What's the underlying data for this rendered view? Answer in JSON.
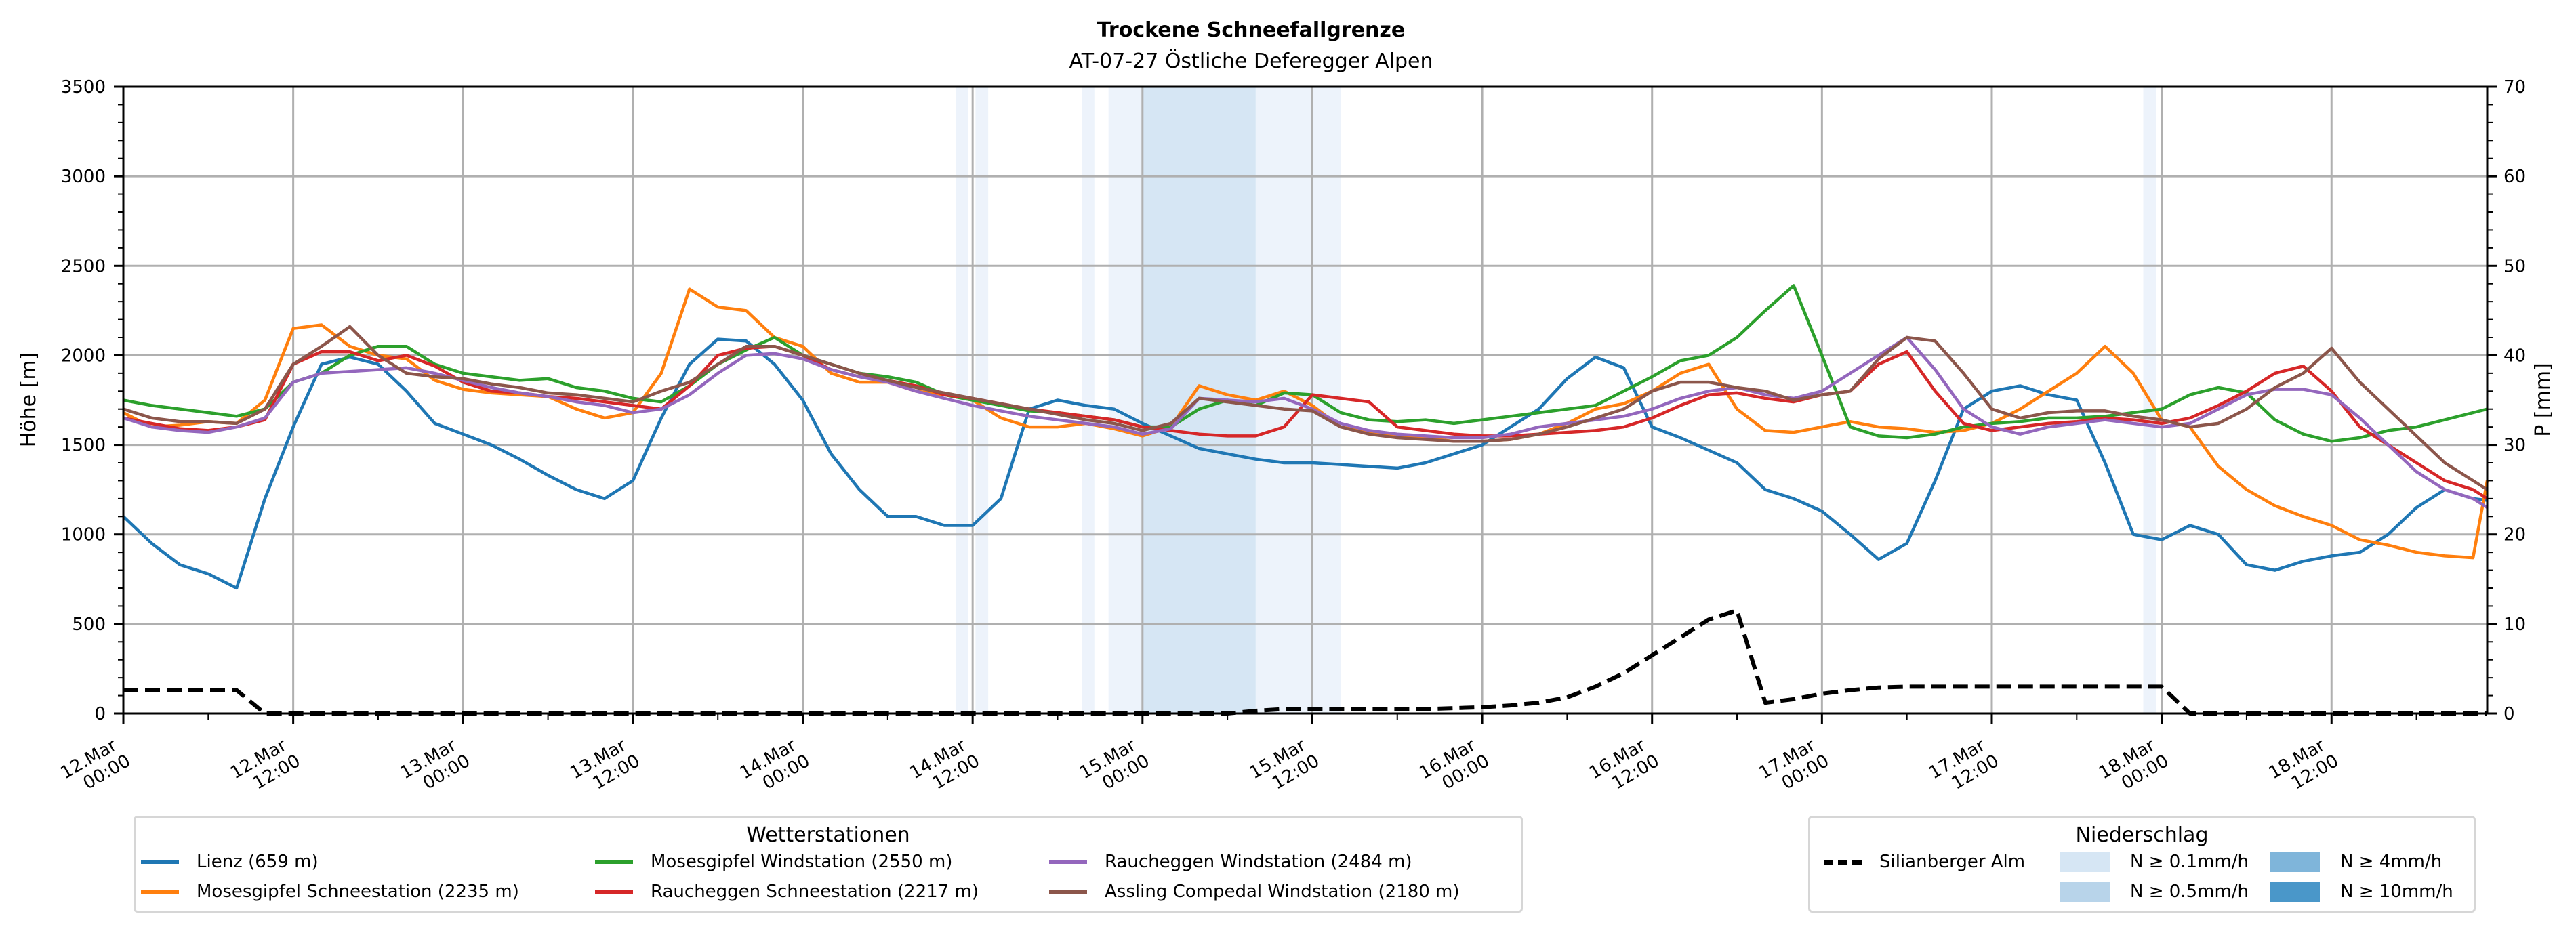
{
  "chart_data": {
    "type": "line",
    "title": "Trockene Schneefallgrenze",
    "subtitle": "AT-07-27 Östliche Deferegger Alpen",
    "ylabel": "Höhe [m]",
    "ylabel_right": "P [mm]",
    "ylim": [
      0,
      3500
    ],
    "ylim_right": [
      0,
      70
    ],
    "yticks": [
      "0",
      "500",
      "1000",
      "1500",
      "2000",
      "2500",
      "3000",
      "3500"
    ],
    "yticks_right": [
      "0",
      "10",
      "20",
      "30",
      "40",
      "50",
      "60",
      "70"
    ],
    "x_unit": "hours since 12.Mar 00:00",
    "xlim": [
      0,
      167
    ],
    "xticks": [
      {
        "h": 0,
        "label": [
          "12.Mar",
          "00:00"
        ]
      },
      {
        "h": 12,
        "label": [
          "12.Mar",
          "12:00"
        ]
      },
      {
        "h": 24,
        "label": [
          "13.Mar",
          "00:00"
        ]
      },
      {
        "h": 36,
        "label": [
          "13.Mar",
          "12:00"
        ]
      },
      {
        "h": 48,
        "label": [
          "14.Mar",
          "00:00"
        ]
      },
      {
        "h": 60,
        "label": [
          "14.Mar",
          "12:00"
        ]
      },
      {
        "h": 72,
        "label": [
          "15.Mar",
          "00:00"
        ]
      },
      {
        "h": 84,
        "label": [
          "15.Mar",
          "12:00"
        ]
      },
      {
        "h": 96,
        "label": [
          "16.Mar",
          "00:00"
        ]
      },
      {
        "h": 108,
        "label": [
          "16.Mar",
          "12:00"
        ]
      },
      {
        "h": 120,
        "label": [
          "17.Mar",
          "00:00"
        ]
      },
      {
        "h": 132,
        "label": [
          "17.Mar",
          "12:00"
        ]
      },
      {
        "h": 144,
        "label": [
          "18.Mar",
          "00:00"
        ]
      },
      {
        "h": 156,
        "label": [
          "18.Mar",
          "12:00"
        ]
      }
    ],
    "grid": true,
    "x": [
      0,
      2,
      4,
      6,
      8,
      10,
      12,
      14,
      16,
      18,
      20,
      22,
      24,
      26,
      28,
      30,
      32,
      34,
      36,
      38,
      40,
      42,
      44,
      46,
      48,
      50,
      52,
      54,
      56,
      58,
      60,
      62,
      64,
      66,
      68,
      70,
      72,
      74,
      76,
      78,
      80,
      82,
      84,
      86,
      88,
      90,
      92,
      94,
      96,
      98,
      100,
      102,
      104,
      106,
      108,
      110,
      112,
      114,
      116,
      118,
      120,
      122,
      124,
      126,
      128,
      130,
      132,
      134,
      136,
      138,
      140,
      142,
      144,
      146,
      148,
      150,
      152,
      154,
      156,
      158,
      160,
      162,
      164,
      166,
      167
    ],
    "series": [
      {
        "name": "Lienz (659 m)",
        "color": "#1f77b4",
        "axis": "left",
        "values": [
          1100,
          950,
          830,
          780,
          700,
          1200,
          1600,
          1950,
          1990,
          1950,
          1800,
          1620,
          1560,
          1500,
          1420,
          1330,
          1250,
          1200,
          1300,
          1650,
          1950,
          2090,
          2080,
          1950,
          1750,
          1450,
          1250,
          1100,
          1100,
          1050,
          1050,
          1200,
          1700,
          1750,
          1720,
          1700,
          1620,
          1550,
          1480,
          1450,
          1420,
          1400,
          1400,
          1390,
          1380,
          1370,
          1400,
          1450,
          1500,
          1600,
          1700,
          1870,
          1990,
          1930,
          1600,
          1540,
          1470,
          1400,
          1250,
          1200,
          1130,
          1000,
          860,
          950,
          1300,
          1700,
          1800,
          1830,
          1780,
          1750,
          1400,
          1000,
          970,
          1050,
          1000,
          830,
          800,
          850,
          880,
          900,
          1000,
          1150,
          1250,
          1200,
          1190
        ]
      },
      {
        "name": "Mosesgipfel Schneestation (2235 m)",
        "color": "#ff7f0e",
        "axis": "left",
        "values": [
          1680,
          1600,
          1610,
          1630,
          1620,
          1750,
          2150,
          2170,
          2050,
          2000,
          1980,
          1860,
          1810,
          1790,
          1780,
          1770,
          1700,
          1650,
          1680,
          1900,
          2370,
          2270,
          2250,
          2100,
          2050,
          1900,
          1850,
          1850,
          1800,
          1780,
          1750,
          1650,
          1600,
          1600,
          1620,
          1590,
          1550,
          1600,
          1830,
          1780,
          1750,
          1800,
          1720,
          1600,
          1570,
          1550,
          1540,
          1520,
          1520,
          1530,
          1560,
          1620,
          1700,
          1730,
          1800,
          1900,
          1950,
          1700,
          1580,
          1570,
          1600,
          1630,
          1600,
          1590,
          1570,
          1580,
          1620,
          1700,
          1800,
          1900,
          2050,
          1900,
          1640,
          1600,
          1380,
          1250,
          1160,
          1100,
          1050,
          970,
          940,
          900,
          880,
          870,
          1300
        ]
      },
      {
        "name": "Mosesgipfel Windstation (2550 m)",
        "color": "#2ca02c",
        "axis": "left",
        "values": [
          1750,
          1720,
          1700,
          1680,
          1660,
          1700,
          1850,
          1900,
          2000,
          2050,
          2050,
          1950,
          1900,
          1880,
          1860,
          1870,
          1820,
          1800,
          1760,
          1740,
          1830,
          1950,
          2030,
          2100,
          2000,
          1950,
          1900,
          1880,
          1850,
          1780,
          1750,
          1720,
          1690,
          1680,
          1660,
          1640,
          1600,
          1600,
          1700,
          1750,
          1720,
          1790,
          1780,
          1680,
          1640,
          1630,
          1640,
          1620,
          1640,
          1660,
          1680,
          1700,
          1720,
          1800,
          1880,
          1970,
          2000,
          2100,
          2250,
          2390,
          2000,
          1600,
          1550,
          1540,
          1560,
          1600,
          1620,
          1630,
          1650,
          1650,
          1660,
          1680,
          1700,
          1780,
          1820,
          1790,
          1640,
          1560,
          1520,
          1540,
          1580,
          1600,
          1640,
          1680,
          1700
        ]
      },
      {
        "name": "Raucheggen Schneestation (2217 m)",
        "color": "#d62728",
        "axis": "left",
        "values": [
          1650,
          1620,
          1590,
          1580,
          1600,
          1640,
          1950,
          2020,
          2020,
          1970,
          2000,
          1940,
          1850,
          1800,
          1790,
          1770,
          1760,
          1740,
          1720,
          1700,
          1830,
          2000,
          2040,
          2050,
          2000,
          1920,
          1880,
          1860,
          1830,
          1780,
          1760,
          1730,
          1700,
          1680,
          1660,
          1640,
          1600,
          1580,
          1560,
          1550,
          1550,
          1600,
          1780,
          1760,
          1740,
          1600,
          1580,
          1560,
          1550,
          1550,
          1560,
          1570,
          1580,
          1600,
          1650,
          1720,
          1780,
          1790,
          1760,
          1740,
          1780,
          1800,
          1950,
          2020,
          1800,
          1620,
          1580,
          1600,
          1620,
          1630,
          1650,
          1640,
          1620,
          1650,
          1720,
          1800,
          1900,
          1940,
          1800,
          1600,
          1500,
          1400,
          1300,
          1250,
          1200
        ]
      },
      {
        "name": "Raucheggen Windstation (2484 m)",
        "color": "#9467bd",
        "axis": "left",
        "values": [
          1650,
          1600,
          1580,
          1570,
          1600,
          1650,
          1850,
          1900,
          1910,
          1920,
          1930,
          1900,
          1860,
          1820,
          1790,
          1770,
          1740,
          1720,
          1680,
          1700,
          1780,
          1900,
          2000,
          2010,
          1980,
          1920,
          1880,
          1850,
          1800,
          1760,
          1720,
          1690,
          1660,
          1640,
          1620,
          1600,
          1560,
          1590,
          1760,
          1750,
          1740,
          1760,
          1700,
          1620,
          1580,
          1560,
          1550,
          1540,
          1540,
          1560,
          1600,
          1620,
          1640,
          1660,
          1700,
          1760,
          1800,
          1820,
          1780,
          1760,
          1800,
          1900,
          2000,
          2100,
          1920,
          1700,
          1600,
          1560,
          1600,
          1620,
          1640,
          1620,
          1600,
          1620,
          1700,
          1780,
          1810,
          1810,
          1780,
          1650,
          1500,
          1350,
          1250,
          1200,
          1150
        ]
      },
      {
        "name": "Assling Compedal Windstation (2180 m)",
        "color": "#8c564b",
        "axis": "left",
        "values": [
          1700,
          1650,
          1630,
          1630,
          1620,
          1700,
          1950,
          2050,
          2160,
          2000,
          1900,
          1880,
          1870,
          1840,
          1820,
          1790,
          1780,
          1760,
          1740,
          1800,
          1850,
          1950,
          2050,
          2050,
          2000,
          1950,
          1900,
          1860,
          1820,
          1790,
          1760,
          1730,
          1700,
          1670,
          1640,
          1620,
          1580,
          1620,
          1760,
          1740,
          1720,
          1700,
          1690,
          1600,
          1560,
          1540,
          1530,
          1520,
          1520,
          1530,
          1560,
          1600,
          1650,
          1700,
          1800,
          1850,
          1850,
          1820,
          1800,
          1750,
          1780,
          1800,
          1980,
          2100,
          2080,
          1900,
          1700,
          1650,
          1680,
          1690,
          1690,
          1660,
          1640,
          1600,
          1620,
          1700,
          1820,
          1900,
          2040,
          1850,
          1700,
          1550,
          1400,
          1300,
          1250
        ]
      },
      {
        "name": "Silianberger Alm",
        "color": "#000000",
        "axis": "right",
        "dashed": true,
        "values": [
          2.6,
          2.6,
          2.6,
          2.6,
          2.6,
          0,
          0,
          0,
          0,
          0,
          0,
          0,
          0,
          0,
          0,
          0,
          0,
          0,
          0,
          0,
          0,
          0,
          0,
          0,
          0,
          0,
          0,
          0,
          0,
          0,
          0,
          0,
          0,
          0,
          0,
          0,
          0,
          0,
          0,
          0,
          0.3,
          0.5,
          0.5,
          0.5,
          0.5,
          0.5,
          0.5,
          0.6,
          0.7,
          0.9,
          1.2,
          1.8,
          3.0,
          4.5,
          6.5,
          8.5,
          10.5,
          11.5,
          1.2,
          1.6,
          2.2,
          2.6,
          2.9,
          3.0,
          3.0,
          3.0,
          3.0,
          3.0,
          3.0,
          3.0,
          3.0,
          3.0,
          3.0,
          0,
          0,
          0,
          0,
          0,
          0,
          0,
          0,
          0,
          0,
          0,
          0
        ]
      }
    ],
    "precip_bands": [
      {
        "start": 58.8,
        "end": 59.7,
        "level": "N ≥ 0.1mm/h"
      },
      {
        "start": 60.2,
        "end": 61.1,
        "level": "N ≥ 0.1mm/h"
      },
      {
        "start": 67.7,
        "end": 68.6,
        "level": "N ≥ 0.1mm/h"
      },
      {
        "start": 69.6,
        "end": 72.0,
        "level": "N ≥ 0.1mm/h"
      },
      {
        "start": 72.0,
        "end": 80.0,
        "level": "N ≥ 0.5mm/h"
      },
      {
        "start": 80.0,
        "end": 86.0,
        "level": "N ≥ 0.1mm/h"
      },
      {
        "start": 142.7,
        "end": 143.6,
        "level": "N ≥ 0.1mm/h"
      }
    ],
    "legend_stations": {
      "title": "Wetterstationen",
      "placement": "bottom-left"
    },
    "legend_precip": {
      "title": "Niederschlag",
      "placement": "bottom-right",
      "line_label": "Silianberger Alm",
      "levels": [
        {
          "label": "N ≥ 0.1mm/h",
          "color": "#d6e6f4"
        },
        {
          "label": "N ≥ 0.5mm/h",
          "color": "#b8d4ea"
        },
        {
          "label": "N ≥ 4mm/h",
          "color": "#7fb5da"
        },
        {
          "label": "N ≥ 10mm/h",
          "color": "#4a97c9"
        }
      ]
    }
  }
}
